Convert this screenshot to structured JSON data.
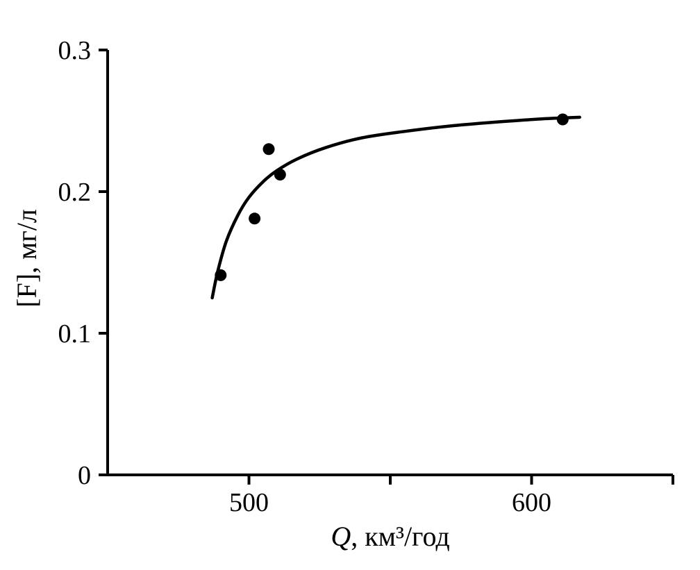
{
  "figure": {
    "background": "#ffffff",
    "ink_color": "#000000"
  },
  "chart_data": {
    "type": "scatter",
    "title": "",
    "xlabel": "Q, км³/год",
    "xlabel_var": "Q",
    "xlabel_rest": ", км³/год",
    "ylabel": "[F], мг/л",
    "xlim": [
      450,
      650
    ],
    "ylim": [
      0,
      0.3
    ],
    "grid": false,
    "legend": null,
    "x_ticks": [
      {
        "value": 500,
        "label": "500"
      },
      {
        "value": 550,
        "label": ""
      },
      {
        "value": 600,
        "label": "600"
      },
      {
        "value": 650,
        "label": ""
      }
    ],
    "y_ticks": [
      {
        "value": 0,
        "label": "0"
      },
      {
        "value": 0.1,
        "label": "0.1"
      },
      {
        "value": 0.2,
        "label": "0.2"
      },
      {
        "value": 0.3,
        "label": "0.3"
      }
    ],
    "points": [
      {
        "x": 490,
        "y": 0.141
      },
      {
        "x": 502,
        "y": 0.181
      },
      {
        "x": 507,
        "y": 0.23
      },
      {
        "x": 511,
        "y": 0.212
      },
      {
        "x": 611,
        "y": 0.251
      }
    ],
    "fit_curve": [
      [
        487,
        0.125
      ],
      [
        489,
        0.144
      ],
      [
        492,
        0.165
      ],
      [
        496,
        0.183
      ],
      [
        500,
        0.196
      ],
      [
        505,
        0.207
      ],
      [
        510,
        0.215
      ],
      [
        517,
        0.223
      ],
      [
        527,
        0.231
      ],
      [
        540,
        0.238
      ],
      [
        555,
        0.2425
      ],
      [
        572,
        0.2465
      ],
      [
        590,
        0.2495
      ],
      [
        605,
        0.2515
      ],
      [
        617,
        0.2525
      ]
    ]
  }
}
